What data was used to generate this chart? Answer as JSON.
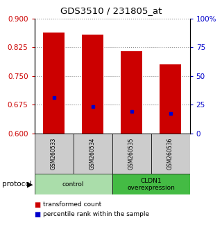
{
  "title": "GDS3510 / 231805_at",
  "samples": [
    "GSM260533",
    "GSM260534",
    "GSM260535",
    "GSM260536"
  ],
  "bar_values": [
    0.863,
    0.858,
    0.815,
    0.78
  ],
  "bar_bottom": 0.6,
  "bar_color": "#cc0000",
  "percentile_values": [
    0.693,
    0.67,
    0.658,
    0.652
  ],
  "percentile_color": "#0000cc",
  "ylim_left": [
    0.6,
    0.9
  ],
  "yticks_left": [
    0.6,
    0.675,
    0.75,
    0.825,
    0.9
  ],
  "ylim_right": [
    0.0,
    1.0
  ],
  "yticks_right": [
    0.0,
    0.25,
    0.5,
    0.75,
    1.0
  ],
  "ytick_right_labels": [
    "0",
    "25",
    "50",
    "75",
    "100%"
  ],
  "left_tick_color": "#cc0000",
  "right_tick_color": "#0000cc",
  "groups": [
    {
      "label": "control",
      "samples": [
        0,
        1
      ],
      "color": "#aaddaa"
    },
    {
      "label": "CLDN1\noverexpression",
      "samples": [
        2,
        3
      ],
      "color": "#44bb44"
    }
  ],
  "protocol_label": "protocol",
  "legend_items": [
    {
      "color": "#cc0000",
      "label": "transformed count"
    },
    {
      "color": "#0000cc",
      "label": "percentile rank within the sample"
    }
  ],
  "grid_color": "#888888",
  "background_color": "#ffffff",
  "sample_box_color": "#cccccc",
  "bar_width": 0.55
}
